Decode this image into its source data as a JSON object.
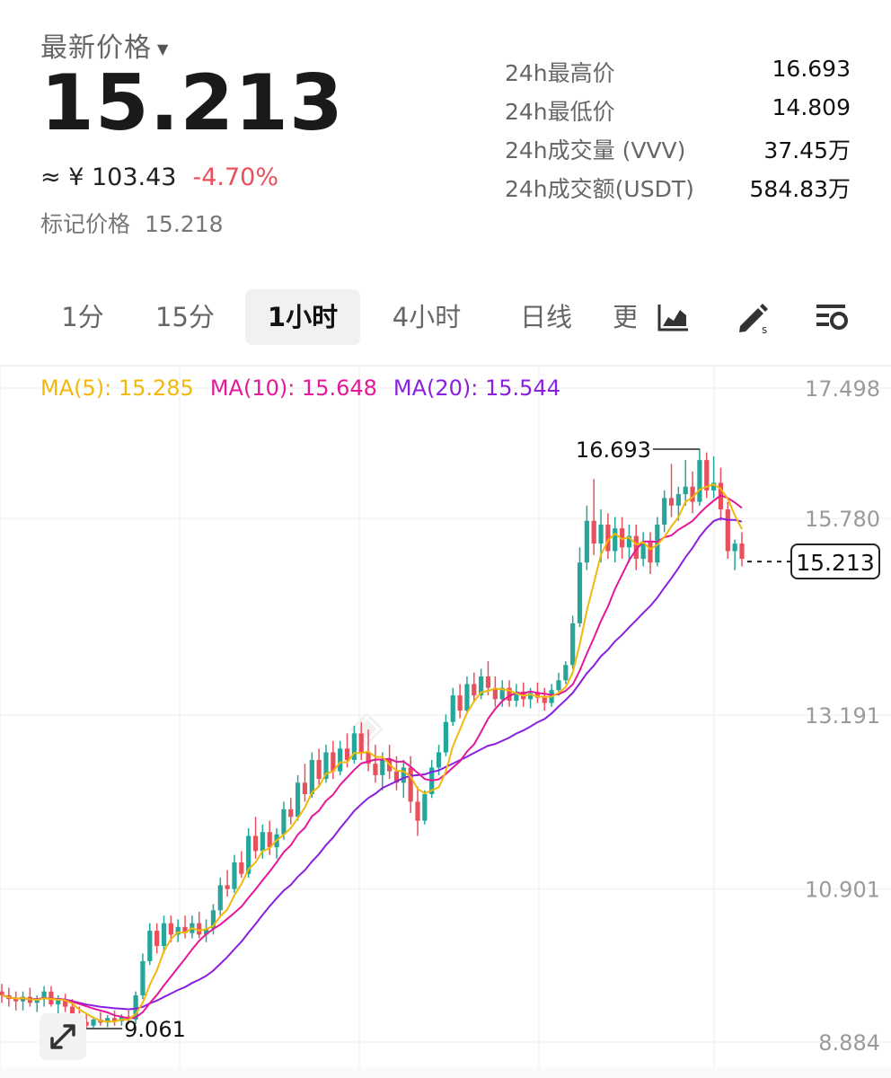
{
  "header": {
    "price_label": "最新价格",
    "last_price": "15.213",
    "cny_price": "≈ ¥ 103.43",
    "change_pct": "-4.70%",
    "mark_price_label": "标记价格",
    "mark_price": "15.218"
  },
  "stats": [
    {
      "label": "24h最高价",
      "value": "16.693"
    },
    {
      "label": "24h最低价",
      "value": "14.809"
    },
    {
      "label": "24h成交量 (VVV)",
      "value": "37.45万"
    },
    {
      "label": "24h成交额(USDT)",
      "value": "584.83万"
    }
  ],
  "tabs": [
    {
      "label": "1分"
    },
    {
      "label": "15分"
    },
    {
      "label": "1小时",
      "active": true
    },
    {
      "label": "4小时"
    },
    {
      "label": "日线"
    },
    {
      "label": "更"
    }
  ],
  "tools": [
    "chart-type-icon",
    "draw-icon",
    "settings-icon"
  ],
  "ma_legend": {
    "ma5": "MA(5): 15.285",
    "ma10": "MA(10): 15.648",
    "ma20": "MA(20): 15.544"
  },
  "colors": {
    "up": "#26a69a",
    "down": "#e8505b",
    "ma5": "#f0b90b",
    "ma10": "#e5189a",
    "ma20": "#8a1fe0",
    "change": "#e8505b"
  },
  "chart_data": {
    "type": "candlestick",
    "y_ticks": [
      "17.498",
      "15.780",
      "13.191",
      "10.901",
      "8.884"
    ],
    "high_marker": "16.693",
    "low_marker": "9.061",
    "current_price_tag": "15.213",
    "ylim": [
      8.884,
      17.498
    ],
    "grid": true,
    "ohlc": [
      [
        9.55,
        9.65,
        9.4,
        9.5
      ],
      [
        9.5,
        9.6,
        9.35,
        9.45
      ],
      [
        9.45,
        9.55,
        9.3,
        9.42
      ],
      [
        9.42,
        9.55,
        9.3,
        9.48
      ],
      [
        9.48,
        9.6,
        9.35,
        9.4
      ],
      [
        9.4,
        9.5,
        9.28,
        9.45
      ],
      [
        9.45,
        9.62,
        9.35,
        9.55
      ],
      [
        9.55,
        9.62,
        9.35,
        9.38
      ],
      [
        9.38,
        9.5,
        9.25,
        9.44
      ],
      [
        9.44,
        9.52,
        9.28,
        9.35
      ],
      [
        9.35,
        9.45,
        9.2,
        9.25
      ],
      [
        9.25,
        9.35,
        9.1,
        9.15
      ],
      [
        9.15,
        9.25,
        9.06,
        9.1
      ],
      [
        9.1,
        9.2,
        9.06,
        9.18
      ],
      [
        9.18,
        9.28,
        9.1,
        9.14
      ],
      [
        9.14,
        9.24,
        9.08,
        9.2
      ],
      [
        9.2,
        9.3,
        9.1,
        9.16
      ],
      [
        9.16,
        9.25,
        9.1,
        9.22
      ],
      [
        9.22,
        9.3,
        9.12,
        9.18
      ],
      [
        9.18,
        9.55,
        9.12,
        9.5
      ],
      [
        9.5,
        10.05,
        9.45,
        9.95
      ],
      [
        9.95,
        10.45,
        9.9,
        10.35
      ],
      [
        10.35,
        10.45,
        10.05,
        10.15
      ],
      [
        10.15,
        10.55,
        10.05,
        10.45
      ],
      [
        10.45,
        10.55,
        10.2,
        10.3
      ],
      [
        10.3,
        10.5,
        10.2,
        10.4
      ],
      [
        10.4,
        10.55,
        10.25,
        10.32
      ],
      [
        10.32,
        10.55,
        10.25,
        10.45
      ],
      [
        10.45,
        10.6,
        10.25,
        10.3
      ],
      [
        10.3,
        10.5,
        10.2,
        10.38
      ],
      [
        10.38,
        10.7,
        10.3,
        10.62
      ],
      [
        10.62,
        11.05,
        10.55,
        10.95
      ],
      [
        10.95,
        11.15,
        10.8,
        10.9
      ],
      [
        10.9,
        11.35,
        10.85,
        11.25
      ],
      [
        11.25,
        11.4,
        11.05,
        11.1
      ],
      [
        11.1,
        11.7,
        11.05,
        11.6
      ],
      [
        11.6,
        11.85,
        11.3,
        11.4
      ],
      [
        11.4,
        11.75,
        11.3,
        11.65
      ],
      [
        11.65,
        11.8,
        11.35,
        11.45
      ],
      [
        11.45,
        11.7,
        11.3,
        11.62
      ],
      [
        11.62,
        12.05,
        11.55,
        11.95
      ],
      [
        11.95,
        12.1,
        11.75,
        11.85
      ],
      [
        11.85,
        12.4,
        11.8,
        12.3
      ],
      [
        12.3,
        12.55,
        12.05,
        12.15
      ],
      [
        12.15,
        12.7,
        12.1,
        12.6
      ],
      [
        12.6,
        12.75,
        12.25,
        12.35
      ],
      [
        12.35,
        12.8,
        12.3,
        12.7
      ],
      [
        12.7,
        12.85,
        12.35,
        12.45
      ],
      [
        12.45,
        12.85,
        12.4,
        12.75
      ],
      [
        12.75,
        12.95,
        12.5,
        12.6
      ],
      [
        12.6,
        13.05,
        12.55,
        12.95
      ],
      [
        12.95,
        13.1,
        12.6,
        12.7
      ],
      [
        12.7,
        13.0,
        12.45,
        12.55
      ],
      [
        12.55,
        12.8,
        12.3,
        12.4
      ],
      [
        12.4,
        12.7,
        12.2,
        12.6
      ],
      [
        12.6,
        12.8,
        12.35,
        12.45
      ],
      [
        12.45,
        12.65,
        12.2,
        12.3
      ],
      [
        12.3,
        12.6,
        12.1,
        12.5
      ],
      [
        12.5,
        12.65,
        11.9,
        12.05
      ],
      [
        12.05,
        12.25,
        11.6,
        11.8
      ],
      [
        11.8,
        12.2,
        11.75,
        12.15
      ],
      [
        12.15,
        12.6,
        12.1,
        12.5
      ],
      [
        12.5,
        12.8,
        12.4,
        12.7
      ],
      [
        12.7,
        13.2,
        12.65,
        13.1
      ],
      [
        13.1,
        13.55,
        13.05,
        13.45
      ],
      [
        13.45,
        13.6,
        13.15,
        13.25
      ],
      [
        13.25,
        13.7,
        13.2,
        13.6
      ],
      [
        13.6,
        13.75,
        13.35,
        13.45
      ],
      [
        13.45,
        13.8,
        13.4,
        13.7
      ],
      [
        13.7,
        13.9,
        13.45,
        13.55
      ],
      [
        13.55,
        13.7,
        13.3,
        13.4
      ],
      [
        13.4,
        13.65,
        13.3,
        13.55
      ],
      [
        13.55,
        13.65,
        13.3,
        13.38
      ],
      [
        13.38,
        13.6,
        13.3,
        13.5
      ],
      [
        13.5,
        13.62,
        13.3,
        13.4
      ],
      [
        13.4,
        13.55,
        13.28,
        13.48
      ],
      [
        13.48,
        13.62,
        13.35,
        13.42
      ],
      [
        13.42,
        13.55,
        13.25,
        13.35
      ],
      [
        13.35,
        13.6,
        13.3,
        13.52
      ],
      [
        13.52,
        13.75,
        13.45,
        13.65
      ],
      [
        13.65,
        13.9,
        13.6,
        13.85
      ],
      [
        13.85,
        14.5,
        13.8,
        14.4
      ],
      [
        14.4,
        15.4,
        14.35,
        15.2
      ],
      [
        15.2,
        15.95,
        15.1,
        15.75
      ],
      [
        15.75,
        16.3,
        15.3,
        15.45
      ],
      [
        15.45,
        15.9,
        15.2,
        15.7
      ],
      [
        15.7,
        15.85,
        15.25,
        15.35
      ],
      [
        15.35,
        15.8,
        15.2,
        15.65
      ],
      [
        15.65,
        15.8,
        15.25,
        15.4
      ],
      [
        15.4,
        15.7,
        15.2,
        15.55
      ],
      [
        15.55,
        15.7,
        15.1,
        15.25
      ],
      [
        15.25,
        15.6,
        15.15,
        15.48
      ],
      [
        15.48,
        15.6,
        15.05,
        15.2
      ],
      [
        15.2,
        15.8,
        15.15,
        15.7
      ],
      [
        15.7,
        16.15,
        15.6,
        16.05
      ],
      [
        16.05,
        16.5,
        15.8,
        15.95
      ],
      [
        15.95,
        16.2,
        15.75,
        16.1
      ],
      [
        16.1,
        16.55,
        15.95,
        16.2
      ],
      [
        16.2,
        16.4,
        15.85,
        16.0
      ],
      [
        16.0,
        16.7,
        15.95,
        16.55
      ],
      [
        16.55,
        16.65,
        16.05,
        16.15
      ],
      [
        16.15,
        16.6,
        16.05,
        16.25
      ],
      [
        16.25,
        16.45,
        15.75,
        15.9
      ],
      [
        15.9,
        16.0,
        15.25,
        15.35
      ],
      [
        15.35,
        15.5,
        15.1,
        15.45
      ],
      [
        15.45,
        15.6,
        15.15,
        15.25
      ]
    ]
  }
}
